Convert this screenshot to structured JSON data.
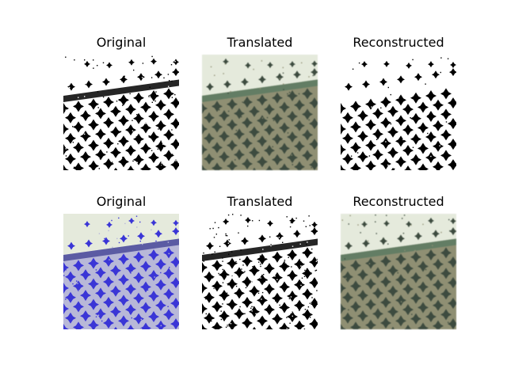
{
  "figure": {
    "rows": [
      {
        "panels": [
          {
            "title": "Original",
            "style": "binary"
          },
          {
            "title": "Translated",
            "style": "color_blurry"
          },
          {
            "title": "Reconstructed",
            "style": "binary_clean"
          }
        ]
      },
      {
        "panels": [
          {
            "title": "Original",
            "style": "blue_pattern"
          },
          {
            "title": "Translated",
            "style": "binary_noisy"
          },
          {
            "title": "Reconstructed",
            "style": "color_blurry"
          }
        ]
      }
    ]
  },
  "colors": {
    "background": "#ffffff",
    "binary_dark": "#000000",
    "blue_motif": "#3a35d6",
    "blurry_motif": "#3d4b3f",
    "blurry_bg": "#8f8f73",
    "header_light": "#e5eadc"
  }
}
